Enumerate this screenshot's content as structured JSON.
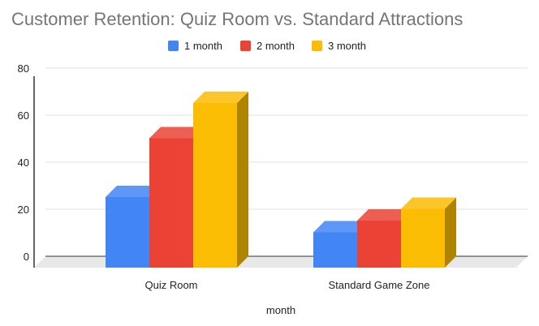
{
  "chart_data": {
    "type": "bar",
    "title": "Customer Retention: Quiz Room vs. Standard Attractions",
    "xlabel": "month",
    "ylabel": "",
    "categories": [
      "Quiz Room",
      "Standard Game Zone"
    ],
    "series": [
      {
        "name": "1 month",
        "values": [
          30,
          15
        ],
        "color": "#4285f4"
      },
      {
        "name": "2 month",
        "values": [
          55,
          20
        ],
        "color": "#ea4335"
      },
      {
        "name": "3 month",
        "values": [
          70,
          25
        ],
        "color": "#fbbc04"
      }
    ],
    "ylim": [
      0,
      80
    ],
    "yticks": [
      0,
      20,
      40,
      60,
      80
    ],
    "legend_position": "top",
    "grid": true,
    "style": "3d"
  }
}
